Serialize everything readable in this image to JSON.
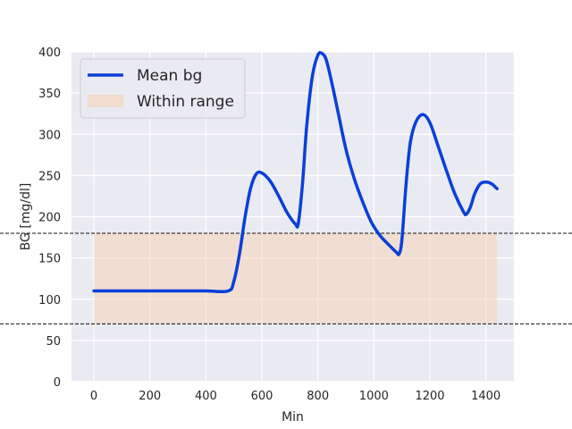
{
  "chart_data": {
    "type": "line",
    "title": "",
    "xlabel": "Min",
    "ylabel": "BG [mg/dl]",
    "xlim": [
      -80,
      1500
    ],
    "ylim": [
      0,
      400
    ],
    "xticks": [
      0,
      200,
      400,
      600,
      800,
      1000,
      1200,
      1400
    ],
    "yticks": [
      0,
      50,
      100,
      150,
      200,
      250,
      300,
      350,
      400
    ],
    "grid": true,
    "legend_position": "top-left",
    "series": [
      {
        "name": "Mean bg",
        "color": "#0a3fd8",
        "x": [
          0,
          100,
          200,
          300,
          400,
          480,
          500,
          520,
          540,
          560,
          580,
          600,
          630,
          660,
          690,
          720,
          730,
          745,
          760,
          780,
          800,
          815,
          830,
          850,
          870,
          900,
          930,
          960,
          990,
          1020,
          1050,
          1080,
          1090,
          1100,
          1115,
          1130,
          1150,
          1175,
          1200,
          1230,
          1260,
          1290,
          1320,
          1330,
          1345,
          1360,
          1380,
          1400,
          1420,
          1440
        ],
        "y": [
          110,
          110,
          110,
          110,
          110,
          110,
          122,
          155,
          200,
          235,
          252,
          253,
          243,
          225,
          205,
          191,
          192,
          240,
          310,
          370,
          396,
          398,
          390,
          362,
          330,
          282,
          246,
          218,
          194,
          178,
          167,
          157,
          155,
          172,
          240,
          290,
          315,
          324,
          314,
          285,
          255,
          227,
          206,
          203,
          212,
          228,
          240,
          242,
          240,
          234
        ]
      }
    ],
    "bands": [
      {
        "name": "Within range",
        "y0": 70,
        "y1": 180,
        "x0": 0,
        "x1": 1440,
        "color": "#f5d4b8"
      }
    ],
    "reference_lines": [
      {
        "y": 180,
        "style": "dashed",
        "color": "#111111"
      },
      {
        "y": 70,
        "style": "dashed",
        "color": "#111111"
      }
    ]
  }
}
